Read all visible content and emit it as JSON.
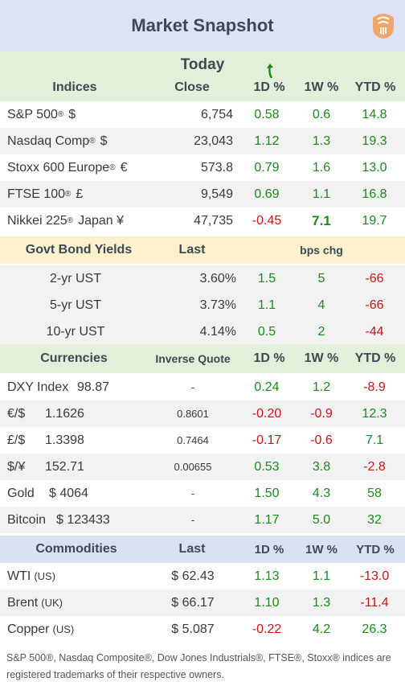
{
  "title": "Market Snapshot",
  "logo_icon": "stylized-face-logo-icon",
  "colors": {
    "title_bg": "#dde3f5",
    "green_header_bg": "#e2efd9",
    "yellow_header_bg": "#fdf1cd",
    "blue_header_bg": "#d9e1f2",
    "row_bg": "#ffffff",
    "alt_bg": "#f2f2f2",
    "positive": "#1a8a1a",
    "negative": "#c41818",
    "logo": "#f0a56a"
  },
  "indices": {
    "period": "Today",
    "headers": {
      "name": "Indices",
      "close": "Close",
      "d1": "1D %",
      "w1": "1W %",
      "ytd": "YTD %"
    },
    "rows": [
      {
        "name": "S&P 500",
        "mark": "®",
        "suffix": "$",
        "close": "6,754",
        "d1": "0.58",
        "w1": "0.6",
        "ytd": "14.8"
      },
      {
        "name": "Nasdaq Comp",
        "mark": "®",
        "suffix": "$",
        "close": "23,043",
        "d1": "1.12",
        "w1": "1.3",
        "ytd": "19.3"
      },
      {
        "name": "Stoxx 600 Europe",
        "mark": "®",
        "suffix": "€",
        "close": "573.8",
        "d1": "0.79",
        "w1": "1.6",
        "ytd": "13.0"
      },
      {
        "name": "FTSE 100",
        "mark": "®",
        "suffix": "£",
        "close": "9,549",
        "d1": "0.69",
        "w1": "1.1",
        "ytd": "16.8"
      },
      {
        "name": "Nikkei 225",
        "mark": "®",
        "suffix": "Japan ¥",
        "close": "47,735",
        "d1": "-0.45",
        "w1": "7.1",
        "ytd": "19.7"
      }
    ]
  },
  "bonds": {
    "headers": {
      "name": "Govt Bond Yields",
      "last": "Last",
      "chg": "bps chg"
    },
    "rows": [
      {
        "name": "2-yr UST",
        "last": "3.60%",
        "d1": "1.5",
        "w1": "5",
        "ytd": "-66"
      },
      {
        "name": "5-yr UST",
        "last": "3.73%",
        "d1": "1.1",
        "w1": "4",
        "ytd": "-66"
      },
      {
        "name": "10-yr UST",
        "last": "4.14%",
        "d1": "0.5",
        "w1": "2",
        "ytd": "-44"
      }
    ]
  },
  "currencies": {
    "headers": {
      "name": "Currencies",
      "inverse": "Inverse Quote",
      "d1": "1D %",
      "w1": "1W %",
      "ytd": "YTD %"
    },
    "rows": [
      {
        "name": "DXY Index",
        "value": "98.87",
        "inverse": "-",
        "d1": "0.24",
        "w1": "1.2",
        "ytd": "-8.9"
      },
      {
        "name": "€/$",
        "value": "1.1626",
        "inverse": "0.8601",
        "d1": "-0.20",
        "w1": "-0.9",
        "ytd": "12.3"
      },
      {
        "name": "£/$",
        "value": "1.3398",
        "inverse": "0.7464",
        "d1": "-0.17",
        "w1": "-0.6",
        "ytd": "7.1"
      },
      {
        "name": "$/¥",
        "value": "152.71",
        "inverse": "0.00655",
        "d1": "0.53",
        "w1": "3.8",
        "ytd": "-2.8"
      },
      {
        "name": "Gold",
        "value": "$ 4064",
        "inverse": "-",
        "d1": "1.50",
        "w1": "4.3",
        "ytd": "58"
      },
      {
        "name": "Bitcoin",
        "value": "$ 123433",
        "inverse": "-",
        "d1": "1.17",
        "w1": "5.0",
        "ytd": "32"
      }
    ]
  },
  "commodities": {
    "headers": {
      "name": "Commodities",
      "last": "Last",
      "d1": "1D %",
      "w1": "1W %",
      "ytd": "YTD %"
    },
    "rows": [
      {
        "name": "WTI",
        "region": "(US)",
        "last": "$ 62.43",
        "d1": "1.13",
        "w1": "1.1",
        "ytd": "-13.0"
      },
      {
        "name": "Brent",
        "region": "(UK)",
        "last": "$ 66.17",
        "d1": "1.10",
        "w1": "1.3",
        "ytd": "-11.4"
      },
      {
        "name": "Copper",
        "region": "(US)",
        "last": "$ 5.087",
        "d1": "-0.22",
        "w1": "4.2",
        "ytd": "26.3"
      }
    ]
  },
  "footnote": "S&P 500®, Nasdaq Composite®, Dow Jones Industrials®, FTSE®, Stoxx® indices are registered trademarks of their respective owners."
}
